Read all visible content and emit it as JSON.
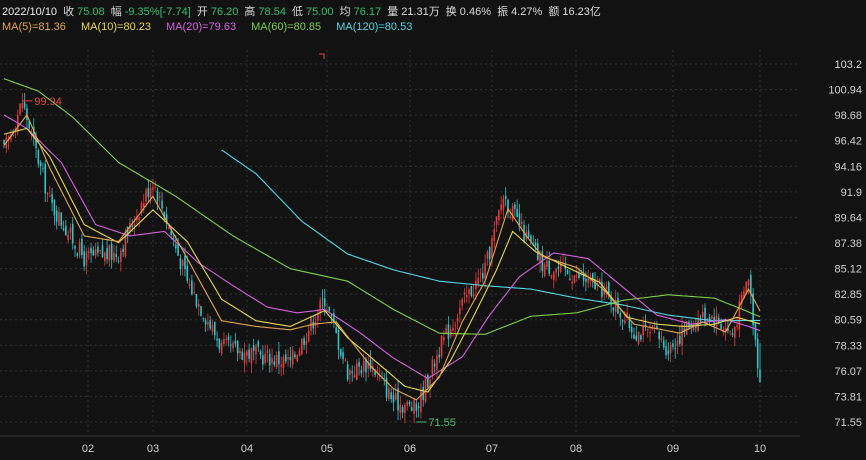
{
  "info": {
    "date": "2022/10/10",
    "close_label": "收",
    "close": "75.08",
    "change_label": "幅",
    "change": "-9.35%[-7.74]",
    "open_label": "开",
    "open": "76.20",
    "high_label": "高",
    "high": "78.54",
    "low_label": "低",
    "low": "75.00",
    "avg_label": "均",
    "avg": "76.17",
    "volume_label": "量",
    "volume": "21.31万",
    "turnover_label": "换",
    "turnover": "0.46%",
    "amplitude_label": "振",
    "amplitude": "4.27%",
    "amount_label": "额",
    "amount": "16.23亿"
  },
  "ma_legend": [
    {
      "text": "MA(5)=81.36",
      "color": "#e0a64a"
    },
    {
      "text": "MA(10)=80.23",
      "color": "#e8d84e"
    },
    {
      "text": "MA(20)=79.63",
      "color": "#d45fe0"
    },
    {
      "text": "MA(60)=80.85",
      "color": "#7ccf47"
    },
    {
      "text": "MA(120)=80.53",
      "color": "#4fd8e6"
    }
  ],
  "chart_data": {
    "type": "candlestick",
    "y_ticks": [
      "103.2",
      "100.94",
      "98.68",
      "96.42",
      "94.16",
      "91.9",
      "89.64",
      "87.38",
      "85.12",
      "82.85",
      "80.59",
      "78.33",
      "76.07",
      "73.81",
      "71.55"
    ],
    "ylim": [
      71.55,
      103.2
    ],
    "x_ticks": [
      "02",
      "03",
      "04",
      "05",
      "06",
      "07",
      "08",
      "09",
      "10"
    ],
    "annotations": [
      {
        "label": "99.94",
        "type": "high",
        "color": "#e04848"
      },
      {
        "label": "71.55",
        "type": "low",
        "color": "#48c070"
      }
    ],
    "colors": {
      "up": "#e23b3b",
      "down": "#30c3c8",
      "grid": "#333333",
      "background": "#121212"
    },
    "anchors": {
      "close": [
        [
          0,
          95.5
        ],
        [
          8,
          99.9
        ],
        [
          20,
          91
        ],
        [
          35,
          86
        ],
        [
          50,
          86.5
        ],
        [
          65,
          93
        ],
        [
          80,
          84
        ],
        [
          95,
          78.2
        ],
        [
          110,
          77.5
        ],
        [
          125,
          76.8
        ],
        [
          140,
          82.5
        ],
        [
          150,
          76
        ],
        [
          160,
          76.8
        ],
        [
          170,
          73.4
        ],
        [
          180,
          72.7
        ],
        [
          190,
          78
        ],
        [
          200,
          82
        ],
        [
          210,
          85
        ],
        [
          218,
          91.6
        ],
        [
          226,
          88.5
        ],
        [
          235,
          85.5
        ],
        [
          250,
          84.5
        ],
        [
          262,
          83.2
        ],
        [
          275,
          79.6
        ],
        [
          285,
          79.2
        ],
        [
          290,
          78
        ],
        [
          300,
          80.4
        ],
        [
          308,
          81.1
        ],
        [
          318,
          79.3
        ],
        [
          325,
          84.5
        ],
        [
          330,
          75.1
        ]
      ],
      "ma5": [
        [
          0,
          96
        ],
        [
          10,
          98.7
        ],
        [
          20,
          94
        ],
        [
          35,
          88
        ],
        [
          50,
          87.5
        ],
        [
          65,
          91.5
        ],
        [
          80,
          86
        ],
        [
          95,
          80.5
        ],
        [
          110,
          80
        ],
        [
          125,
          79.7
        ],
        [
          135,
          80.2
        ],
        [
          145,
          80.4
        ],
        [
          160,
          76.5
        ],
        [
          170,
          74.5
        ],
        [
          180,
          73.5
        ],
        [
          190,
          75.5
        ],
        [
          200,
          80.4
        ],
        [
          210,
          84
        ],
        [
          220,
          90.4
        ],
        [
          228,
          88
        ],
        [
          235,
          86.2
        ],
        [
          250,
          85.2
        ],
        [
          262,
          83.2
        ],
        [
          275,
          80.2
        ],
        [
          285,
          79.8
        ],
        [
          295,
          79.4
        ],
        [
          305,
          80.4
        ],
        [
          315,
          79.5
        ],
        [
          325,
          83.3
        ],
        [
          330,
          81.36
        ]
      ],
      "ma10": [
        [
          0,
          97
        ],
        [
          10,
          97.5
        ],
        [
          20,
          95
        ],
        [
          35,
          89
        ],
        [
          50,
          87.4
        ],
        [
          65,
          90.3
        ],
        [
          80,
          87.5
        ],
        [
          95,
          82.4
        ],
        [
          110,
          80.5
        ],
        [
          125,
          80
        ],
        [
          140,
          81.4
        ],
        [
          150,
          79
        ],
        [
          160,
          77.3
        ],
        [
          175,
          74.7
        ],
        [
          185,
          74.2
        ],
        [
          195,
          77
        ],
        [
          205,
          80.9
        ],
        [
          215,
          85
        ],
        [
          222,
          88.4
        ],
        [
          232,
          86.6
        ],
        [
          245,
          85.3
        ],
        [
          260,
          83.9
        ],
        [
          272,
          80.8
        ],
        [
          285,
          80.2
        ],
        [
          297,
          80
        ],
        [
          310,
          80.2
        ],
        [
          320,
          80.8
        ],
        [
          330,
          80.23
        ]
      ],
      "ma20": [
        [
          0,
          98.7
        ],
        [
          10,
          97.5
        ],
        [
          25,
          94.5
        ],
        [
          40,
          89
        ],
        [
          55,
          88
        ],
        [
          70,
          88.4
        ],
        [
          85,
          85.6
        ],
        [
          100,
          83.6
        ],
        [
          115,
          81.7
        ],
        [
          128,
          81.2
        ],
        [
          140,
          81.5
        ],
        [
          155,
          79.5
        ],
        [
          170,
          77.2
        ],
        [
          185,
          75.4
        ],
        [
          200,
          77.3
        ],
        [
          212,
          81
        ],
        [
          225,
          84.4
        ],
        [
          240,
          86.5
        ],
        [
          255,
          86
        ],
        [
          270,
          83.5
        ],
        [
          285,
          81
        ],
        [
          300,
          80.2
        ],
        [
          315,
          80.6
        ],
        [
          325,
          80
        ],
        [
          330,
          79.63
        ]
      ],
      "ma60": [
        [
          0,
          101.9
        ],
        [
          15,
          100.8
        ],
        [
          30,
          98.5
        ],
        [
          50,
          94.5
        ],
        [
          75,
          91.5
        ],
        [
          100,
          88
        ],
        [
          125,
          85.1
        ],
        [
          150,
          84
        ],
        [
          170,
          81.5
        ],
        [
          190,
          79.4
        ],
        [
          210,
          79.3
        ],
        [
          230,
          80.9
        ],
        [
          250,
          81.2
        ],
        [
          270,
          82.3
        ],
        [
          290,
          82.8
        ],
        [
          310,
          82.5
        ],
        [
          320,
          81.7
        ],
        [
          330,
          80.85
        ]
      ],
      "ma120": [
        [
          95,
          95.6
        ],
        [
          110,
          93.5
        ],
        [
          130,
          89.3
        ],
        [
          150,
          86.4
        ],
        [
          170,
          85
        ],
        [
          190,
          84
        ],
        [
          210,
          83.6
        ],
        [
          230,
          83.3
        ],
        [
          250,
          82.5
        ],
        [
          270,
          81.9
        ],
        [
          290,
          81
        ],
        [
          310,
          80.5
        ],
        [
          330,
          80.53
        ]
      ]
    },
    "last_candle": {
      "open": 76.2,
      "high": 78.54,
      "low": 75.0,
      "close": 75.08
    }
  }
}
